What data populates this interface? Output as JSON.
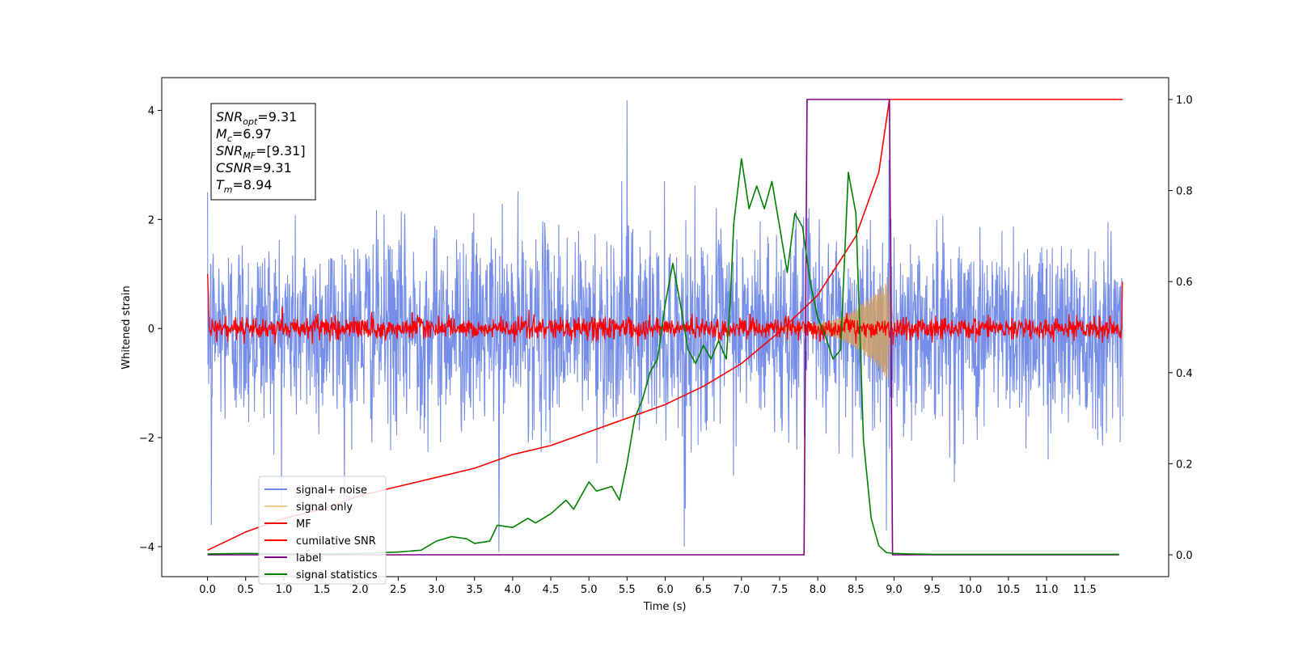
{
  "chart_data": {
    "type": "line",
    "xlabel": "Time (s)",
    "ylabel": "Whitened strain",
    "xlim": [
      -0.6,
      12.6
    ],
    "ylim": [
      -4.55,
      4.6
    ],
    "y2lim": [
      -0.048,
      1.048
    ],
    "x_ticks": [
      "0.0",
      "0.5",
      "1.0",
      "1.5",
      "2.0",
      "2.5",
      "3.0",
      "3.5",
      "4.0",
      "4.5",
      "5.0",
      "5.5",
      "6.0",
      "6.5",
      "7.0",
      "7.5",
      "8.0",
      "8.5",
      "9.0",
      "9.5",
      "10.0",
      "10.5",
      "11.0",
      "11.5"
    ],
    "y_ticks": [
      "4",
      "2",
      "0",
      "−2",
      "−4"
    ],
    "y2_ticks": [
      "1.0",
      "0.8",
      "0.6",
      "0.4",
      "0.2",
      "0.0"
    ],
    "stats_box": [
      {
        "name": "SNR",
        "sub": "opt",
        "value": "=9.31"
      },
      {
        "name": "M",
        "sub": "c",
        "value": "=6.97"
      },
      {
        "name": "SNR",
        "sub": "MF",
        "value": "=[9.31]"
      },
      {
        "name": "CSNR",
        "sub": "",
        "value": "=9.31"
      },
      {
        "name": "T",
        "sub": "m",
        "value": "=8.94"
      }
    ],
    "legend_position": "lower-left",
    "series": [
      {
        "name": "signal+ noise",
        "color": "#6f88e6",
        "axis": "left",
        "description_values": {
          "x_range": [
            0.0,
            12.0
          ],
          "noise_std": 0.9,
          "spikes": [
            [
              5.5,
              4.18
            ],
            [
              3.82,
              -4.1
            ],
            [
              6.25,
              -4.0
            ],
            [
              8.9,
              -3.7
            ],
            [
              0.05,
              -3.6
            ]
          ]
        }
      },
      {
        "name": "signal only",
        "color": "#f5c98a",
        "axis": "left",
        "description_values": {
          "x_range": [
            7.5,
            9.0
          ],
          "envelope_peak": 0.95,
          "peak_time": 8.94
        }
      },
      {
        "name": "MF",
        "color": "#ff0000",
        "axis": "left",
        "description_values": {
          "x_range": [
            0.0,
            12.0
          ],
          "noise_std": 0.1
        }
      },
      {
        "name": "cumilative SNR",
        "color": "#ff0000",
        "axis": "right",
        "x": [
          0.0,
          0.5,
          1.0,
          1.5,
          2.0,
          2.5,
          3.0,
          3.5,
          4.0,
          4.5,
          5.0,
          5.5,
          6.0,
          6.5,
          7.0,
          7.5,
          8.0,
          8.5,
          8.8,
          8.94,
          9.0,
          12.0
        ],
        "values": [
          0.01,
          0.05,
          0.08,
          0.1,
          0.13,
          0.15,
          0.17,
          0.19,
          0.22,
          0.24,
          0.27,
          0.3,
          0.33,
          0.37,
          0.42,
          0.49,
          0.57,
          0.7,
          0.84,
          1.0,
          1.0,
          1.0
        ]
      },
      {
        "name": "label",
        "color": "#800080",
        "axis": "right",
        "x": [
          0.0,
          7.82,
          7.86,
          8.94,
          8.98,
          11.95
        ],
        "values": [
          0.0,
          0.0,
          1.0,
          1.0,
          0.0,
          0.0
        ]
      },
      {
        "name": "signal statistics",
        "color": "#008000",
        "axis": "right",
        "x": [
          0.0,
          0.5,
          1.0,
          1.5,
          2.0,
          2.5,
          2.8,
          3.0,
          3.2,
          3.4,
          3.5,
          3.7,
          3.8,
          4.0,
          4.2,
          4.3,
          4.5,
          4.7,
          4.8,
          5.0,
          5.1,
          5.3,
          5.4,
          5.5,
          5.6,
          5.7,
          5.8,
          5.9,
          6.0,
          6.1,
          6.2,
          6.3,
          6.4,
          6.5,
          6.6,
          6.7,
          6.8,
          6.85,
          6.9,
          7.0,
          7.1,
          7.2,
          7.3,
          7.4,
          7.5,
          7.6,
          7.7,
          7.8,
          7.9,
          8.0,
          8.1,
          8.2,
          8.3,
          8.4,
          8.5,
          8.6,
          8.7,
          8.8,
          8.9,
          9.0,
          9.2,
          9.5,
          10.0,
          11.0,
          11.95
        ],
        "values": [
          0.002,
          0.003,
          0.002,
          0.002,
          0.003,
          0.006,
          0.01,
          0.03,
          0.04,
          0.035,
          0.025,
          0.03,
          0.065,
          0.06,
          0.08,
          0.07,
          0.09,
          0.12,
          0.1,
          0.16,
          0.14,
          0.15,
          0.12,
          0.2,
          0.3,
          0.34,
          0.4,
          0.43,
          0.55,
          0.64,
          0.55,
          0.45,
          0.42,
          0.46,
          0.43,
          0.47,
          0.43,
          0.55,
          0.73,
          0.87,
          0.76,
          0.81,
          0.76,
          0.82,
          0.72,
          0.62,
          0.75,
          0.72,
          0.6,
          0.52,
          0.48,
          0.43,
          0.45,
          0.84,
          0.75,
          0.25,
          0.08,
          0.02,
          0.005,
          0.003,
          0.002,
          0.001,
          0.001,
          0.001,
          0.001
        ]
      }
    ]
  }
}
